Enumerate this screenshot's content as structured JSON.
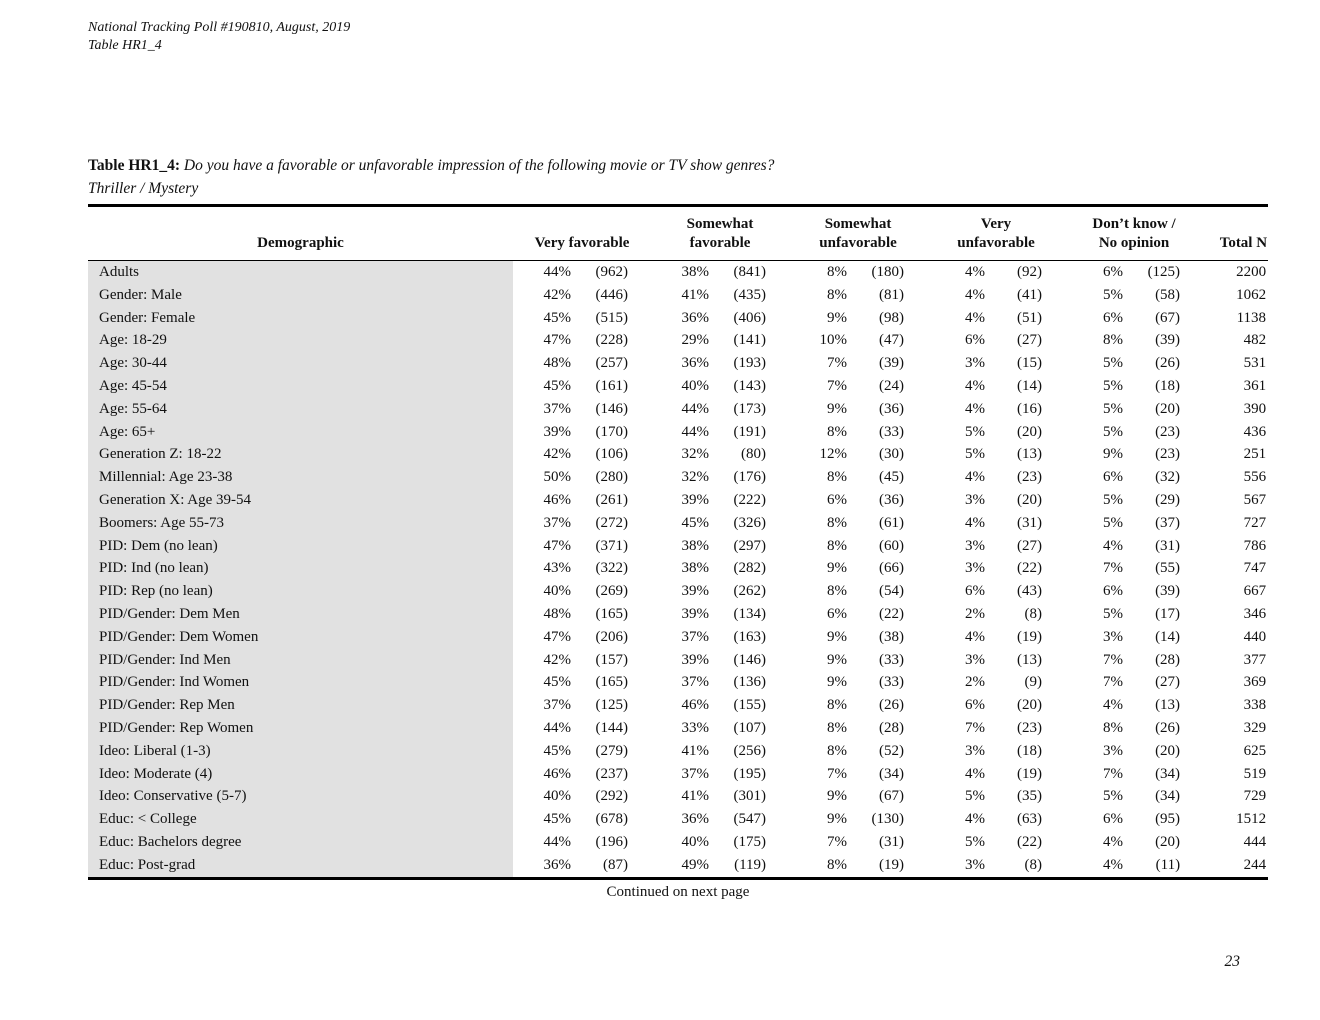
{
  "page": {
    "header_line1": "National Tracking Poll #190810, August, 2019",
    "header_line2": "Table HR1_4",
    "continued": "Continued on next page",
    "page_number": "23"
  },
  "table": {
    "title_prefix": "Table HR1_4:",
    "title_question": "Do you have a favorable or unfavorable impression of the following movie or TV show genres?",
    "subtitle": "Thriller / Mystery",
    "col_demographic": "Demographic",
    "total_label": "Total N",
    "groups": [
      {
        "label": "Very favorable",
        "lines": [
          "Very favorable"
        ]
      },
      {
        "label": "Somewhat favorable",
        "lines": [
          "Somewhat",
          "favorable"
        ]
      },
      {
        "label": "Somewhat unfavorable",
        "lines": [
          "Somewhat",
          "unfavorable"
        ]
      },
      {
        "label": "Very unfavorable",
        "lines": [
          "Very",
          "unfavorable"
        ]
      },
      {
        "label": "Don’t know / No opinion",
        "lines": [
          "Don’t know /",
          "No opinion"
        ]
      }
    ],
    "rows": [
      {
        "demographic": "Adults",
        "values": [
          [
            "44%",
            "(962)"
          ],
          [
            "38%",
            "(841)"
          ],
          [
            "8%",
            "(180)"
          ],
          [
            "4%",
            "(92)"
          ],
          [
            "6%",
            "(125)"
          ]
        ],
        "total": "2200"
      },
      {
        "demographic": "Gender: Male",
        "values": [
          [
            "42%",
            "(446)"
          ],
          [
            "41%",
            "(435)"
          ],
          [
            "8%",
            "(81)"
          ],
          [
            "4%",
            "(41)"
          ],
          [
            "5%",
            "(58)"
          ]
        ],
        "total": "1062"
      },
      {
        "demographic": "Gender: Female",
        "values": [
          [
            "45%",
            "(515)"
          ],
          [
            "36%",
            "(406)"
          ],
          [
            "9%",
            "(98)"
          ],
          [
            "4%",
            "(51)"
          ],
          [
            "6%",
            "(67)"
          ]
        ],
        "total": "1138"
      },
      {
        "demographic": "Age: 18-29",
        "values": [
          [
            "47%",
            "(228)"
          ],
          [
            "29%",
            "(141)"
          ],
          [
            "10%",
            "(47)"
          ],
          [
            "6%",
            "(27)"
          ],
          [
            "8%",
            "(39)"
          ]
        ],
        "total": "482"
      },
      {
        "demographic": "Age: 30-44",
        "values": [
          [
            "48%",
            "(257)"
          ],
          [
            "36%",
            "(193)"
          ],
          [
            "7%",
            "(39)"
          ],
          [
            "3%",
            "(15)"
          ],
          [
            "5%",
            "(26)"
          ]
        ],
        "total": "531"
      },
      {
        "demographic": "Age: 45-54",
        "values": [
          [
            "45%",
            "(161)"
          ],
          [
            "40%",
            "(143)"
          ],
          [
            "7%",
            "(24)"
          ],
          [
            "4%",
            "(14)"
          ],
          [
            "5%",
            "(18)"
          ]
        ],
        "total": "361"
      },
      {
        "demographic": "Age: 55-64",
        "values": [
          [
            "37%",
            "(146)"
          ],
          [
            "44%",
            "(173)"
          ],
          [
            "9%",
            "(36)"
          ],
          [
            "4%",
            "(16)"
          ],
          [
            "5%",
            "(20)"
          ]
        ],
        "total": "390"
      },
      {
        "demographic": "Age: 65+",
        "values": [
          [
            "39%",
            "(170)"
          ],
          [
            "44%",
            "(191)"
          ],
          [
            "8%",
            "(33)"
          ],
          [
            "5%",
            "(20)"
          ],
          [
            "5%",
            "(23)"
          ]
        ],
        "total": "436"
      },
      {
        "demographic": "Generation Z: 18-22",
        "values": [
          [
            "42%",
            "(106)"
          ],
          [
            "32%",
            "(80)"
          ],
          [
            "12%",
            "(30)"
          ],
          [
            "5%",
            "(13)"
          ],
          [
            "9%",
            "(23)"
          ]
        ],
        "total": "251"
      },
      {
        "demographic": "Millennial: Age 23-38",
        "values": [
          [
            "50%",
            "(280)"
          ],
          [
            "32%",
            "(176)"
          ],
          [
            "8%",
            "(45)"
          ],
          [
            "4%",
            "(23)"
          ],
          [
            "6%",
            "(32)"
          ]
        ],
        "total": "556"
      },
      {
        "demographic": "Generation X: Age 39-54",
        "values": [
          [
            "46%",
            "(261)"
          ],
          [
            "39%",
            "(222)"
          ],
          [
            "6%",
            "(36)"
          ],
          [
            "3%",
            "(20)"
          ],
          [
            "5%",
            "(29)"
          ]
        ],
        "total": "567"
      },
      {
        "demographic": "Boomers: Age 55-73",
        "values": [
          [
            "37%",
            "(272)"
          ],
          [
            "45%",
            "(326)"
          ],
          [
            "8%",
            "(61)"
          ],
          [
            "4%",
            "(31)"
          ],
          [
            "5%",
            "(37)"
          ]
        ],
        "total": "727"
      },
      {
        "demographic": "PID: Dem (no lean)",
        "values": [
          [
            "47%",
            "(371)"
          ],
          [
            "38%",
            "(297)"
          ],
          [
            "8%",
            "(60)"
          ],
          [
            "3%",
            "(27)"
          ],
          [
            "4%",
            "(31)"
          ]
        ],
        "total": "786"
      },
      {
        "demographic": "PID: Ind (no lean)",
        "values": [
          [
            "43%",
            "(322)"
          ],
          [
            "38%",
            "(282)"
          ],
          [
            "9%",
            "(66)"
          ],
          [
            "3%",
            "(22)"
          ],
          [
            "7%",
            "(55)"
          ]
        ],
        "total": "747"
      },
      {
        "demographic": "PID: Rep (no lean)",
        "values": [
          [
            "40%",
            "(269)"
          ],
          [
            "39%",
            "(262)"
          ],
          [
            "8%",
            "(54)"
          ],
          [
            "6%",
            "(43)"
          ],
          [
            "6%",
            "(39)"
          ]
        ],
        "total": "667"
      },
      {
        "demographic": "PID/Gender: Dem Men",
        "values": [
          [
            "48%",
            "(165)"
          ],
          [
            "39%",
            "(134)"
          ],
          [
            "6%",
            "(22)"
          ],
          [
            "2%",
            "(8)"
          ],
          [
            "5%",
            "(17)"
          ]
        ],
        "total": "346"
      },
      {
        "demographic": "PID/Gender: Dem Women",
        "values": [
          [
            "47%",
            "(206)"
          ],
          [
            "37%",
            "(163)"
          ],
          [
            "9%",
            "(38)"
          ],
          [
            "4%",
            "(19)"
          ],
          [
            "3%",
            "(14)"
          ]
        ],
        "total": "440"
      },
      {
        "demographic": "PID/Gender: Ind Men",
        "values": [
          [
            "42%",
            "(157)"
          ],
          [
            "39%",
            "(146)"
          ],
          [
            "9%",
            "(33)"
          ],
          [
            "3%",
            "(13)"
          ],
          [
            "7%",
            "(28)"
          ]
        ],
        "total": "377"
      },
      {
        "demographic": "PID/Gender: Ind Women",
        "values": [
          [
            "45%",
            "(165)"
          ],
          [
            "37%",
            "(136)"
          ],
          [
            "9%",
            "(33)"
          ],
          [
            "2%",
            "(9)"
          ],
          [
            "7%",
            "(27)"
          ]
        ],
        "total": "369"
      },
      {
        "demographic": "PID/Gender: Rep Men",
        "values": [
          [
            "37%",
            "(125)"
          ],
          [
            "46%",
            "(155)"
          ],
          [
            "8%",
            "(26)"
          ],
          [
            "6%",
            "(20)"
          ],
          [
            "4%",
            "(13)"
          ]
        ],
        "total": "338"
      },
      {
        "demographic": "PID/Gender: Rep Women",
        "values": [
          [
            "44%",
            "(144)"
          ],
          [
            "33%",
            "(107)"
          ],
          [
            "8%",
            "(28)"
          ],
          [
            "7%",
            "(23)"
          ],
          [
            "8%",
            "(26)"
          ]
        ],
        "total": "329"
      },
      {
        "demographic": "Ideo: Liberal (1-3)",
        "values": [
          [
            "45%",
            "(279)"
          ],
          [
            "41%",
            "(256)"
          ],
          [
            "8%",
            "(52)"
          ],
          [
            "3%",
            "(18)"
          ],
          [
            "3%",
            "(20)"
          ]
        ],
        "total": "625"
      },
      {
        "demographic": "Ideo: Moderate (4)",
        "values": [
          [
            "46%",
            "(237)"
          ],
          [
            "37%",
            "(195)"
          ],
          [
            "7%",
            "(34)"
          ],
          [
            "4%",
            "(19)"
          ],
          [
            "7%",
            "(34)"
          ]
        ],
        "total": "519"
      },
      {
        "demographic": "Ideo: Conservative (5-7)",
        "values": [
          [
            "40%",
            "(292)"
          ],
          [
            "41%",
            "(301)"
          ],
          [
            "9%",
            "(67)"
          ],
          [
            "5%",
            "(35)"
          ],
          [
            "5%",
            "(34)"
          ]
        ],
        "total": "729"
      },
      {
        "demographic": "Educ: < College",
        "values": [
          [
            "45%",
            "(678)"
          ],
          [
            "36%",
            "(547)"
          ],
          [
            "9%",
            "(130)"
          ],
          [
            "4%",
            "(63)"
          ],
          [
            "6%",
            "(95)"
          ]
        ],
        "total": "1512"
      },
      {
        "demographic": "Educ: Bachelors degree",
        "values": [
          [
            "44%",
            "(196)"
          ],
          [
            "40%",
            "(175)"
          ],
          [
            "7%",
            "(31)"
          ],
          [
            "5%",
            "(22)"
          ],
          [
            "4%",
            "(20)"
          ]
        ],
        "total": "444"
      },
      {
        "demographic": "Educ: Post-grad",
        "values": [
          [
            "36%",
            "(87)"
          ],
          [
            "49%",
            "(119)"
          ],
          [
            "8%",
            "(19)"
          ],
          [
            "3%",
            "(8)"
          ],
          [
            "4%",
            "(11)"
          ]
        ],
        "total": "244"
      }
    ]
  }
}
